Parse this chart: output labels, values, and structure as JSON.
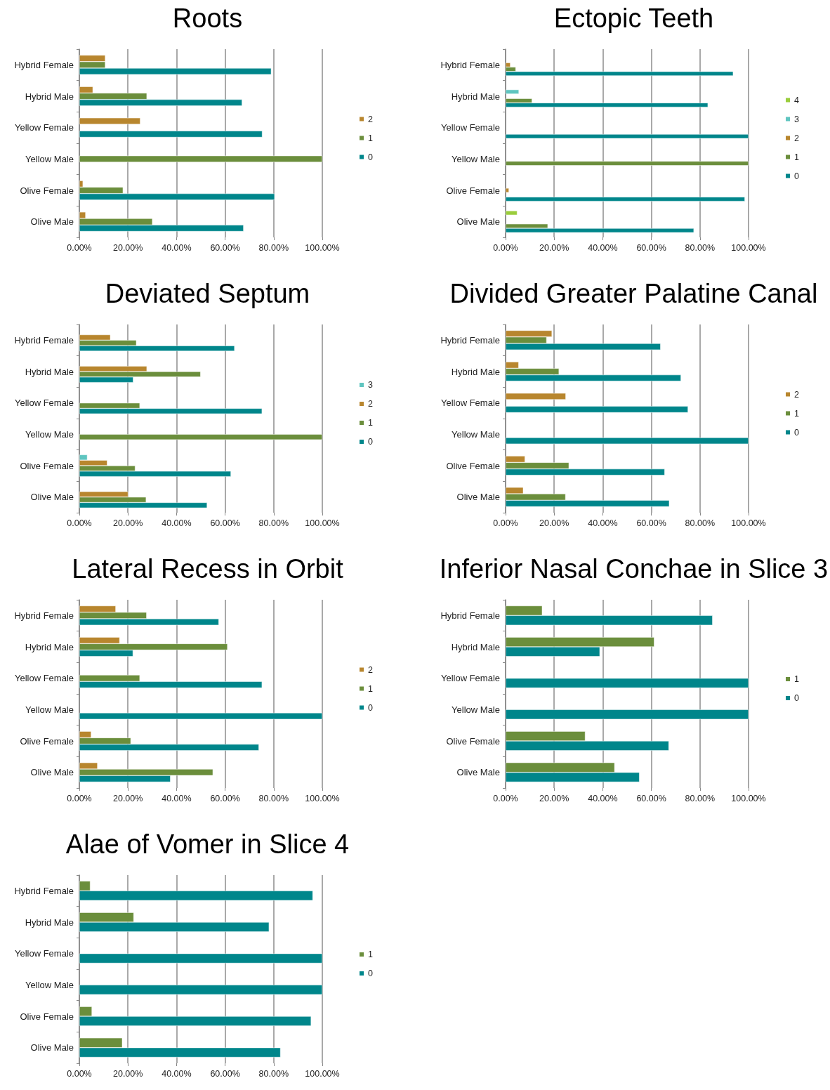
{
  "chart_data": [
    {
      "type": "bar",
      "orientation": "horizontal",
      "title": "Roots",
      "categories": [
        "Hybrid Female",
        "Hybrid Male",
        "Yellow Female",
        "Yellow Male",
        "Olive Female",
        "Olive Male"
      ],
      "series": [
        {
          "name": "2",
          "color": "#b8862e",
          "values": [
            10.7,
            5.6,
            25.1,
            null,
            1.5,
            2.6
          ]
        },
        {
          "name": "1",
          "color": "#6b8e3c",
          "values": [
            10.7,
            27.8,
            null,
            100,
            18.0,
            30.1
          ]
        },
        {
          "name": "0",
          "color": "#00868b",
          "values": [
            79.0,
            67.0,
            75.3,
            null,
            80.4,
            67.6
          ]
        }
      ],
      "xlim": [
        0,
        100
      ],
      "xticks": [
        {
          "value": 0,
          "label": "0.00%"
        },
        {
          "value": 20,
          "label": "20.00%"
        },
        {
          "value": 40,
          "label": "40.00%"
        },
        {
          "value": 60,
          "label": "60.00%"
        },
        {
          "value": 80,
          "label": "80.00%"
        },
        {
          "value": 100,
          "label": "100.00%"
        }
      ],
      "grid": "x",
      "legend": "right"
    },
    {
      "type": "bar",
      "orientation": "horizontal",
      "title": "Ectopic Teeth",
      "categories": [
        "Hybrid Female",
        "Hybrid Male",
        "Yellow Female",
        "Yellow Male",
        "Olive Female",
        "Olive Male"
      ],
      "series": [
        {
          "name": "4",
          "color": "#9acd3c",
          "values": [
            null,
            null,
            null,
            null,
            null,
            4.8
          ]
        },
        {
          "name": "3",
          "color": "#5fc5c0",
          "values": [
            null,
            5.5,
            null,
            null,
            null,
            null
          ]
        },
        {
          "name": "2",
          "color": "#b8862e",
          "values": [
            2.0,
            null,
            null,
            null,
            1.4,
            null
          ]
        },
        {
          "name": "1",
          "color": "#6b8e3c",
          "values": [
            4.2,
            10.9,
            null,
            100,
            null,
            17.4
          ]
        },
        {
          "name": "0",
          "color": "#00868b",
          "values": [
            93.7,
            83.3,
            100,
            null,
            98.5,
            77.5
          ]
        }
      ],
      "xlim": [
        0,
        100
      ],
      "xticks": [
        {
          "value": 0,
          "label": "0.00%"
        },
        {
          "value": 20,
          "label": "20.00%"
        },
        {
          "value": 40,
          "label": "40.00%"
        },
        {
          "value": 60,
          "label": "60.00%"
        },
        {
          "value": 80,
          "label": "80.00%"
        },
        {
          "value": 100,
          "label": "100.00%"
        }
      ],
      "grid": "x",
      "legend": "right"
    },
    {
      "type": "bar",
      "orientation": "horizontal",
      "title": "Deviated Septum",
      "categories": [
        "Hybrid Female",
        "Hybrid Male",
        "Yellow Female",
        "Yellow Male",
        "Olive Female",
        "Olive Male"
      ],
      "series": [
        {
          "name": "3",
          "color": "#5fc5c0",
          "values": [
            null,
            null,
            null,
            null,
            3.3,
            null
          ]
        },
        {
          "name": "2",
          "color": "#b8862e",
          "values": [
            12.8,
            27.8,
            null,
            null,
            11.5,
            20.1
          ]
        },
        {
          "name": "1",
          "color": "#6b8e3c",
          "values": [
            23.5,
            49.9,
            24.9,
            100,
            23.0,
            27.5
          ]
        },
        {
          "name": "0",
          "color": "#00868b",
          "values": [
            63.9,
            22.2,
            75.2,
            null,
            62.4,
            52.6
          ]
        }
      ],
      "xlim": [
        0,
        100
      ],
      "xticks": [
        {
          "value": 0,
          "label": "0.00%"
        },
        {
          "value": 20,
          "label": "20.00%"
        },
        {
          "value": 40,
          "label": "40.00%"
        },
        {
          "value": 60,
          "label": "60.00%"
        },
        {
          "value": 80,
          "label": "80.00%"
        },
        {
          "value": 100,
          "label": "100.00%"
        }
      ],
      "grid": "x",
      "legend": "right"
    },
    {
      "type": "bar",
      "orientation": "horizontal",
      "title": "Divided Greater Palatine Canal",
      "categories": [
        "Hybrid Female",
        "Hybrid Male",
        "Yellow Female",
        "Yellow Male",
        "Olive Female",
        "Olive Male"
      ],
      "series": [
        {
          "name": "2",
          "color": "#b8862e",
          "values": [
            19.1,
            5.4,
            24.8,
            null,
            8.0,
            7.3
          ]
        },
        {
          "name": "1",
          "color": "#6b8e3c",
          "values": [
            16.9,
            22.0,
            null,
            null,
            26.1,
            24.7
          ]
        },
        {
          "name": "0",
          "color": "#00868b",
          "values": [
            63.8,
            72.2,
            75.1,
            100,
            65.5,
            67.4
          ]
        }
      ],
      "xlim": [
        0,
        100
      ],
      "xticks": [
        {
          "value": 0,
          "label": "0.00%"
        },
        {
          "value": 20,
          "label": "20.00%"
        },
        {
          "value": 40,
          "label": "40.00%"
        },
        {
          "value": 60,
          "label": "60.00%"
        },
        {
          "value": 80,
          "label": "80.00%"
        },
        {
          "value": 100,
          "label": "100.00%"
        }
      ],
      "grid": "x",
      "legend": "right"
    },
    {
      "type": "bar",
      "orientation": "horizontal",
      "title": "Lateral Recess in Orbit",
      "categories": [
        "Hybrid Female",
        "Hybrid Male",
        "Yellow Female",
        "Yellow Male",
        "Olive Female",
        "Olive Male"
      ],
      "series": [
        {
          "name": "2",
          "color": "#b8862e",
          "values": [
            15.0,
            16.6,
            null,
            null,
            4.9,
            7.5
          ]
        },
        {
          "name": "1",
          "color": "#6b8e3c",
          "values": [
            27.7,
            61.0,
            24.9,
            null,
            21.2,
            55.0
          ]
        },
        {
          "name": "0",
          "color": "#00868b",
          "values": [
            57.4,
            22.1,
            75.2,
            100,
            73.9,
            37.5
          ]
        }
      ],
      "xlim": [
        0,
        100
      ],
      "xticks": [
        {
          "value": 0,
          "label": "0.00%"
        },
        {
          "value": 20,
          "label": "20.00%"
        },
        {
          "value": 40,
          "label": "40.00%"
        },
        {
          "value": 60,
          "label": "60.00%"
        },
        {
          "value": 80,
          "label": "80.00%"
        },
        {
          "value": 100,
          "label": "100.00%"
        }
      ],
      "grid": "x",
      "legend": "right"
    },
    {
      "type": "bar",
      "orientation": "horizontal",
      "title": "Inferior Nasal Conchae in Slice 3",
      "categories": [
        "Hybrid Female",
        "Hybrid Male",
        "Yellow Female",
        "Yellow Male",
        "Olive Female",
        "Olive Male"
      ],
      "series": [
        {
          "name": "1",
          "color": "#6b8e3c",
          "values": [
            15.1,
            61.2,
            null,
            null,
            32.8,
            44.9
          ]
        },
        {
          "name": "0",
          "color": "#00868b",
          "values": [
            85.2,
            38.8,
            100,
            100,
            67.2,
            55.1
          ]
        }
      ],
      "xlim": [
        0,
        100
      ],
      "xticks": [
        {
          "value": 0,
          "label": "0.00%"
        },
        {
          "value": 20,
          "label": "20.00%"
        },
        {
          "value": 40,
          "label": "40.00%"
        },
        {
          "value": 60,
          "label": "60.00%"
        },
        {
          "value": 80,
          "label": "80.00%"
        },
        {
          "value": 100,
          "label": "100.00%"
        }
      ],
      "grid": "x",
      "legend": "right"
    },
    {
      "type": "bar",
      "orientation": "horizontal",
      "title": "Alae of Vomer in Slice 4",
      "categories": [
        "Hybrid Female",
        "Hybrid Male",
        "Yellow Female",
        "Yellow Male",
        "Olive Female",
        "Olive Male"
      ],
      "series": [
        {
          "name": "1",
          "color": "#6b8e3c",
          "values": [
            4.5,
            22.4,
            null,
            null,
            5.2,
            17.7
          ]
        },
        {
          "name": "0",
          "color": "#00868b",
          "values": [
            96.1,
            78.1,
            100,
            100,
            95.4,
            82.8
          ]
        }
      ],
      "xlim": [
        0,
        100
      ],
      "xticks": [
        {
          "value": 0,
          "label": "0.00%"
        },
        {
          "value": 20,
          "label": "20.00%"
        },
        {
          "value": 40,
          "label": "40.00%"
        },
        {
          "value": 60,
          "label": "60.00%"
        },
        {
          "value": 80,
          "label": "80.00%"
        },
        {
          "value": 100,
          "label": "100.00%"
        }
      ],
      "grid": "x",
      "legend": "right"
    }
  ]
}
